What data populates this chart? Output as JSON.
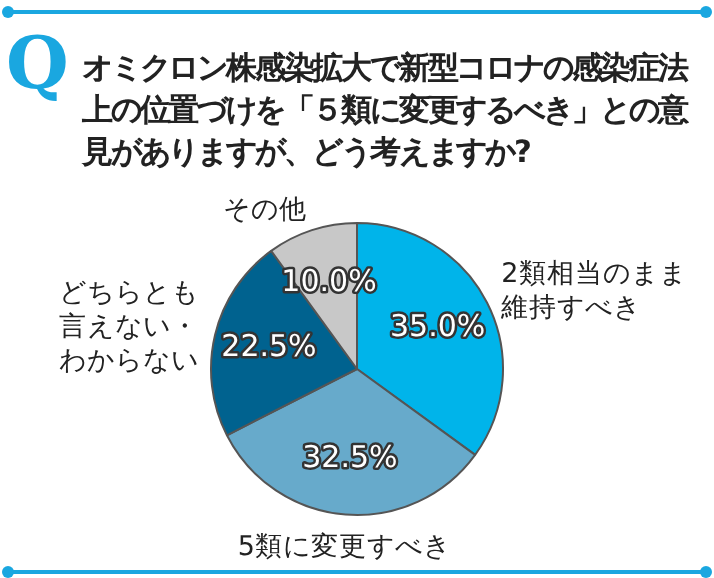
{
  "chart_data": {
    "type": "pie",
    "title": "オミクロン株感染拡大で新型コロナの感染症法上の位置づけを「５類に変更するべき」との意見がありますが、どう考えますか?",
    "annotations": [
      "Q"
    ],
    "categories": [
      "2類相当のまま維持すべき",
      "5類に変更すべき",
      "どちらとも言えない・わからない",
      "その他"
    ],
    "values": [
      35.0,
      32.5,
      22.5,
      10.0
    ],
    "colors": [
      "#00b4ea",
      "#67aacb",
      "#00628f",
      "#c8c8c8"
    ],
    "value_labels": [
      "35.0%",
      "32.5%",
      "22.5%",
      "10.0%"
    ]
  }
}
